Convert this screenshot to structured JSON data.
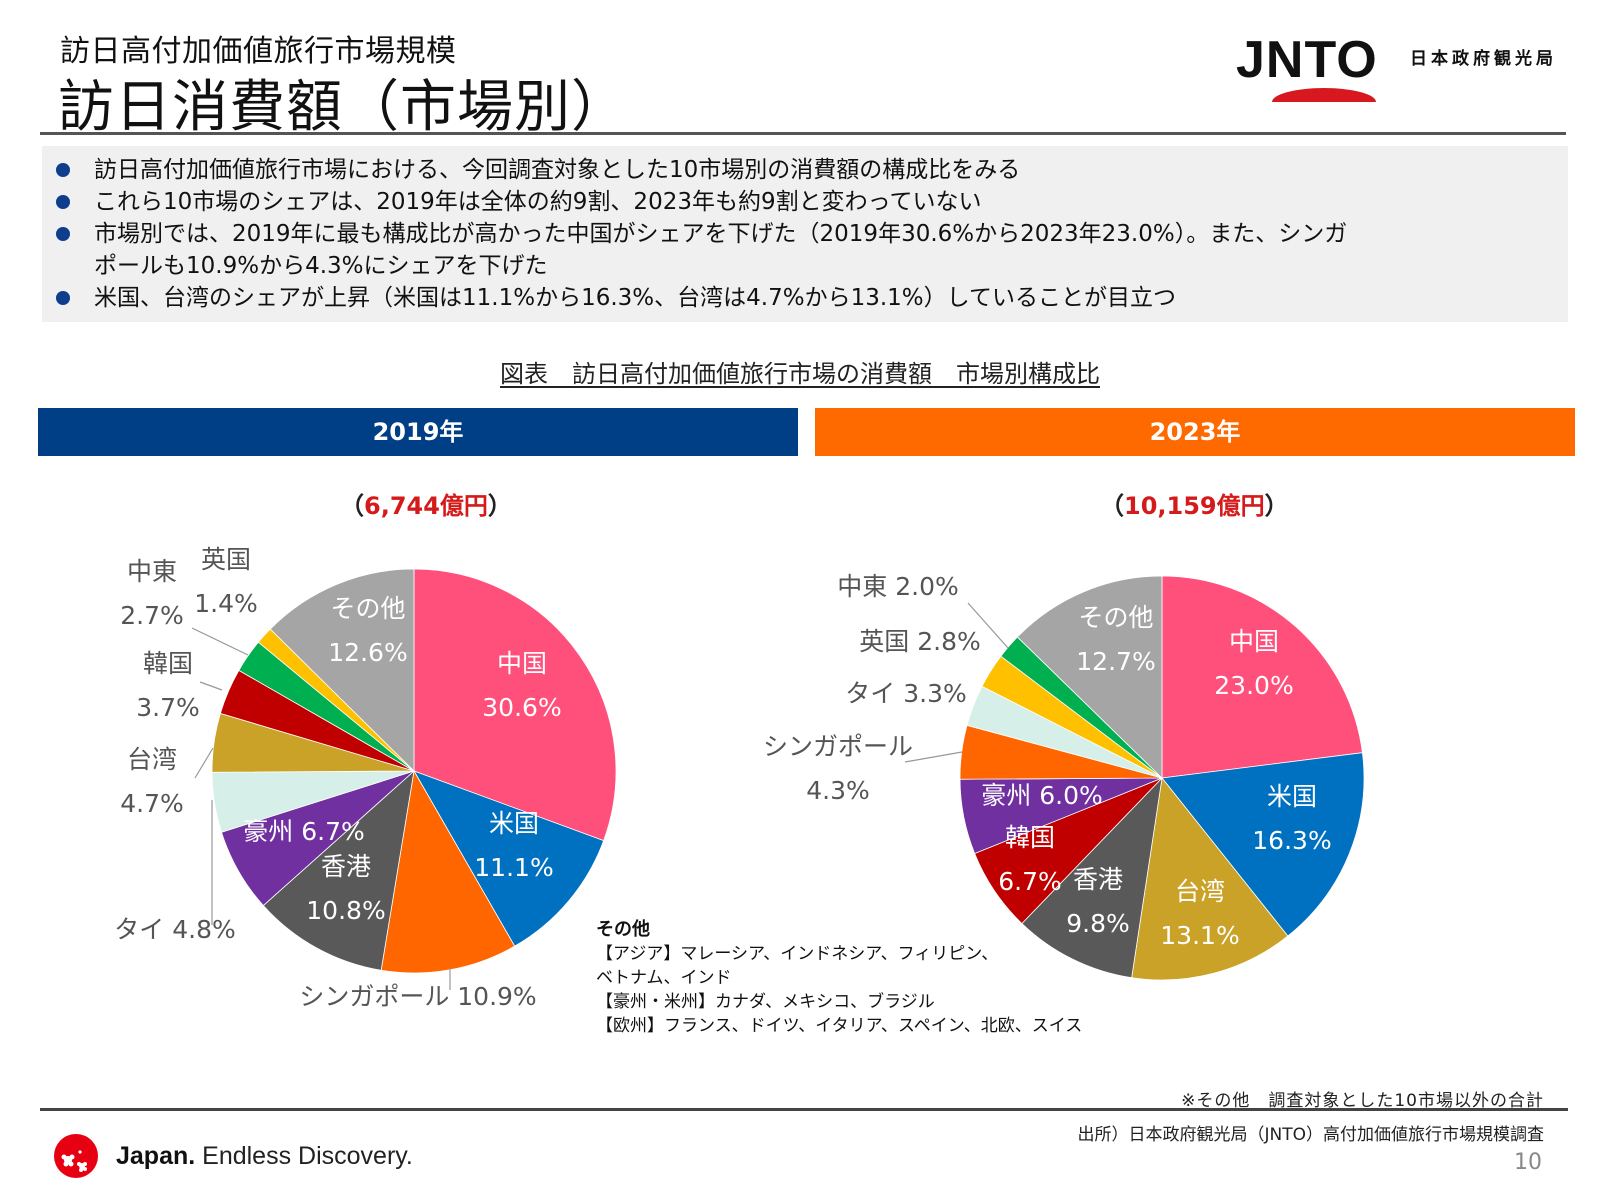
{
  "header": {
    "subtitle": "訪日高付加価値旅行市場規模",
    "title": "訪日消費額（市場別）",
    "logo_text": "JNTO",
    "org_name": "日本政府観光局"
  },
  "bullets": [
    "訪日高付加価値旅行市場における、今回調査対象とした10市場別の消費額の構成比をみる",
    "これら10市場のシェアは、2019年は全体の約9割、2023年も約9割と変わっていない",
    "市場別では、2019年に最も構成比が高かった中国がシェアを下げた（2019年30.6%から2023年23.0%）。また、シンガ",
    "ポールも10.9%から4.3%にシェアを下げた",
    "米国、台湾のシェアが上昇（米国は11.1%から16.3%、台湾は4.7%から13.1%）していることが目立つ"
  ],
  "figure_title": "図表　訪日高付加価値旅行市場の消費額　市場別構成比",
  "panels": [
    {
      "year_label": "2019年",
      "total_open": "（",
      "total_amount": "6,744億円",
      "total_close": "）",
      "color": "#003e86"
    },
    {
      "year_label": "2023年",
      "total_open": "（",
      "total_amount": "10,159億円",
      "total_close": "）",
      "color": "#ff6a00"
    }
  ],
  "chart_data": [
    {
      "type": "pie",
      "title": "2019年",
      "total": "6,744億円",
      "start": "12 o'clock",
      "direction": "clockwise",
      "categories": [
        "中国",
        "米国",
        "シンガポール",
        "香港",
        "豪州",
        "タイ",
        "台湾",
        "韓国",
        "中東",
        "英国",
        "その他"
      ],
      "values": [
        30.6,
        11.1,
        10.9,
        10.8,
        6.7,
        4.8,
        4.7,
        3.7,
        2.7,
        1.4,
        12.6
      ],
      "colors": [
        "#ff4f7b",
        "#0070c0",
        "#ff6600",
        "#595959",
        "#7030a0",
        "#d6efe9",
        "#c9a227",
        "#c00000",
        "#00b050",
        "#ffc000",
        "#a5a5a5"
      ],
      "labels": [
        "中国\n30.6%",
        "米国\n11.1%",
        "シンガポール 10.9%",
        "香港\n10.8%",
        "豪州 6.7%",
        "タイ 4.8%",
        "台湾\n4.7%",
        "韓国\n3.7%",
        "中東\n2.7%",
        "英国\n1.4%",
        "その他\n12.6%"
      ],
      "unit": "%"
    },
    {
      "type": "pie",
      "title": "2023年",
      "total": "10,159億円",
      "start": "12 o'clock",
      "direction": "clockwise",
      "categories": [
        "中国",
        "米国",
        "台湾",
        "香港",
        "韓国",
        "豪州",
        "シンガポール",
        "タイ",
        "英国",
        "中東",
        "その他"
      ],
      "values": [
        23.0,
        16.3,
        13.1,
        9.8,
        6.7,
        6.0,
        4.3,
        3.3,
        2.8,
        2.0,
        12.7
      ],
      "colors": [
        "#ff4f7b",
        "#0070c0",
        "#c9a227",
        "#595959",
        "#c00000",
        "#7030a0",
        "#ff6600",
        "#d6efe9",
        "#ffc000",
        "#00b050",
        "#a5a5a5"
      ],
      "labels": [
        "中国\n23.0%",
        "米国\n16.3%",
        "台湾\n13.1%",
        "香港\n9.8%",
        "韓国\n6.7%",
        "豪州 6.0%",
        "シンガポール\n4.3%",
        "タイ 3.3%",
        "英国 2.8%",
        "中東 2.0%",
        "その他\n12.7%"
      ],
      "unit": "%"
    }
  ],
  "other_note": {
    "heading": "その他",
    "lines": [
      "【アジア】マレーシア、インドネシア、フィリピン、",
      "ベトナム、インド",
      "【豪州・米州】カナダ、メキシコ、ブラジル",
      "【欧州】フランス、ドイツ、イタリア、スペイン、北欧、スイス"
    ]
  },
  "footer": {
    "footnote": "※その他　調査対象とした10市場以外の合計",
    "source": "出所）日本政府観光局（JNTO）高付加価値旅行市場規模調査",
    "page_number": "10",
    "brand_bold": "Japan.",
    "brand_rest": " Endless Discovery."
  }
}
